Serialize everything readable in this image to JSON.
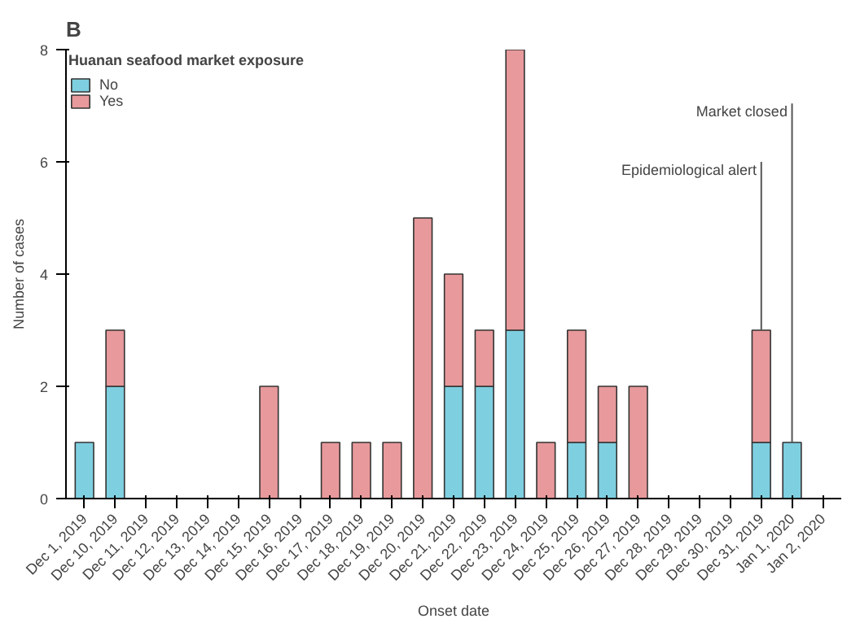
{
  "chart_data": {
    "type": "bar",
    "stacked": true,
    "title": "B",
    "xlabel": "Onset date",
    "ylabel": "Number of cases",
    "legend_title": "Huanan seafood market exposure",
    "legend": "top left",
    "grid": false,
    "ylim": [
      0,
      8
    ],
    "yticks": [
      0,
      2,
      4,
      6,
      8
    ],
    "categories": [
      "Dec 1, 2019",
      "Dec 10, 2019",
      "Dec 11, 2019",
      "Dec 12, 2019",
      "Dec 13, 2019",
      "Dec 14, 2019",
      "Dec 15, 2019",
      "Dec 16, 2019",
      "Dec 17, 2019",
      "Dec 18, 2019",
      "Dec 19, 2019",
      "Dec 20, 2019",
      "Dec 21, 2019",
      "Dec 22, 2019",
      "Dec 23, 2019",
      "Dec 24, 2019",
      "Dec 25, 2019",
      "Dec 26, 2019",
      "Dec 27, 2019",
      "Dec 28, 2019",
      "Dec 29, 2019",
      "Dec 30, 2019",
      "Dec 31, 2019",
      "Jan 1, 2020",
      "Jan 2, 2020"
    ],
    "series": [
      {
        "name": "No",
        "color": "#7ecfe0",
        "values": [
          1,
          2,
          0,
          0,
          0,
          0,
          0,
          0,
          0,
          0,
          0,
          0,
          2,
          2,
          3,
          0,
          1,
          1,
          0,
          0,
          0,
          0,
          1,
          1,
          0
        ]
      },
      {
        "name": "Yes",
        "color": "#e8999b",
        "values": [
          0,
          1,
          0,
          0,
          0,
          0,
          2,
          0,
          1,
          1,
          1,
          5,
          2,
          1,
          5,
          1,
          2,
          1,
          2,
          0,
          0,
          0,
          2,
          0,
          0
        ]
      }
    ],
    "ref_lines": [
      {
        "axis": "x",
        "value": "Dec 31, 2019",
        "label": "Epidemiological alert",
        "color": "#555555"
      },
      {
        "axis": "x",
        "value": "Jan 1, 2020",
        "label": "Market closed",
        "color": "#555555"
      }
    ]
  }
}
